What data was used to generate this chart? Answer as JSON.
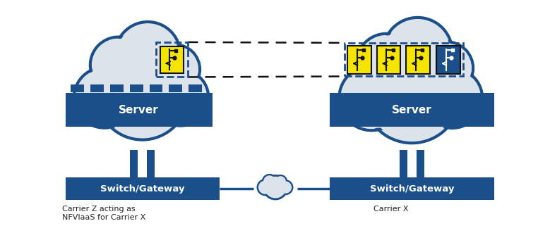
{
  "bg_color": "#ffffff",
  "cloud_color": "#dde3ea",
  "cloud_border": "#1a4f8a",
  "cloud_border_lw": 3.0,
  "server_color": "#1a4f8a",
  "server_text": "Server",
  "switch_color": "#1a4f8a",
  "switch_text_left": "Switch/Gateway",
  "switch_text_right": "Switch/Gateway",
  "label_left": "Carrier Z acting as\nNFVIaaS for Carrier X",
  "label_right": "Carrier X",
  "yellow": "#f5e400",
  "dark_blue": "#1a4f8a",
  "dashed_color": "#111111",
  "small_cloud_color": "#dde3ea",
  "small_cloud_border": "#1a4f8a",
  "pillar_color": "#1a4f8a",
  "line_color": "#1a4f8a"
}
